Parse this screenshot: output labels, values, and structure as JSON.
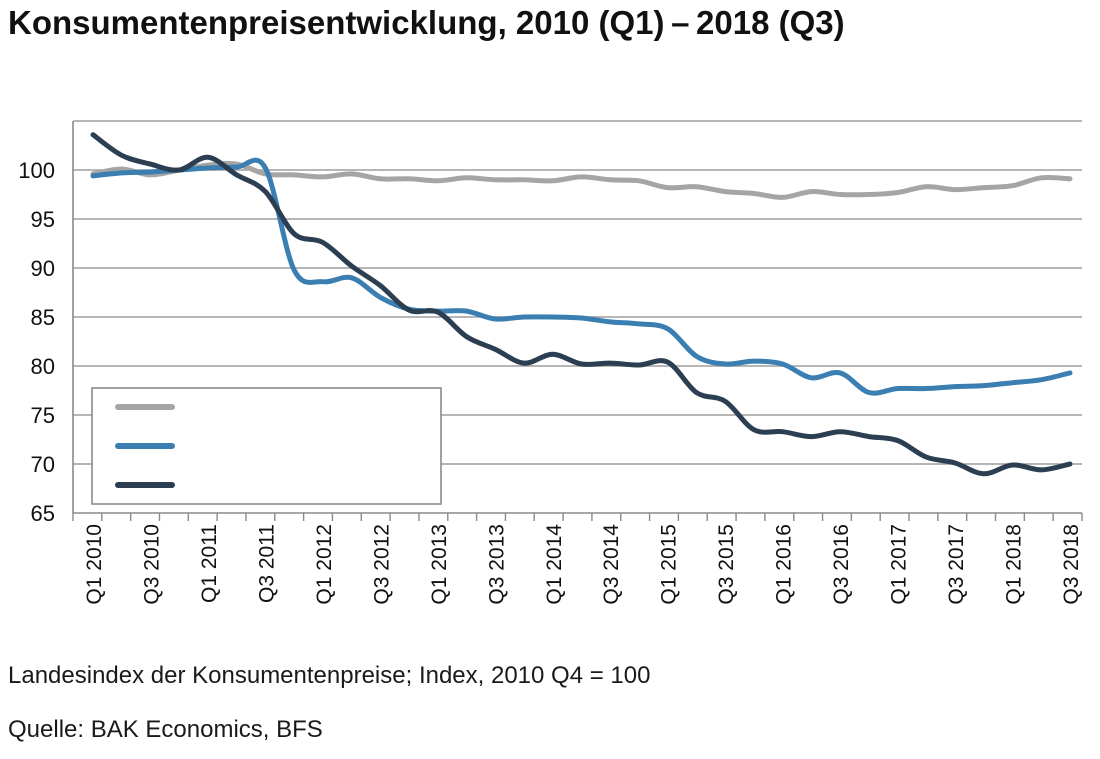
{
  "title": "Konsumentenpreisentwicklung, 2010 (Q1) – 2018 (Q3)",
  "notes": {
    "index_note": "Landesindex der Konsumentenpreise; Index, 2010 Q4 = 100",
    "source": "Quelle: BAK Economics, BFS"
  },
  "chart_data": {
    "type": "line",
    "xlabel": "",
    "ylabel": "",
    "ylim": [
      65,
      105
    ],
    "yticks": [
      65,
      70,
      75,
      80,
      85,
      90,
      95,
      100
    ],
    "grid": true,
    "legend_position": "bottom-left",
    "x_tick_labels": [
      "Q1 2010",
      "Q3 2010",
      "Q1 2011",
      "Q3 2011",
      "Q1 2012",
      "Q3 2012",
      "Q1 2013",
      "Q3 2013",
      "Q1 2014",
      "Q3 2014",
      "Q1 2015",
      "Q3 2015",
      "Q1 2016",
      "Q3 2016",
      "Q1 2017",
      "Q3 2017",
      "Q1 2018",
      "Q3 2018"
    ],
    "categories": [
      "Q1 2010",
      "Q2 2010",
      "Q3 2010",
      "Q4 2010",
      "Q1 2011",
      "Q2 2011",
      "Q3 2011",
      "Q4 2011",
      "Q1 2012",
      "Q2 2012",
      "Q3 2012",
      "Q4 2012",
      "Q1 2013",
      "Q2 2013",
      "Q3 2013",
      "Q4 2013",
      "Q1 2014",
      "Q2 2014",
      "Q3 2014",
      "Q4 2014",
      "Q1 2015",
      "Q2 2015",
      "Q3 2015",
      "Q4 2015",
      "Q1 2016",
      "Q2 2016",
      "Q3 2016",
      "Q4 2016",
      "Q1 2017",
      "Q2 2017",
      "Q3 2017",
      "Q4 2017",
      "Q1 2018",
      "Q2 2018",
      "Q3 2018"
    ],
    "series": [
      {
        "color": "#a5a5a5",
        "values": [
          99.6,
          100.1,
          99.5,
          100.0,
          100.5,
          100.6,
          99.6,
          99.5,
          99.3,
          99.6,
          99.1,
          99.1,
          98.9,
          99.2,
          99.0,
          99.0,
          98.9,
          99.3,
          99.0,
          98.9,
          98.2,
          98.3,
          97.8,
          97.6,
          97.2,
          97.8,
          97.5,
          97.5,
          97.7,
          98.3,
          98.0,
          98.2,
          98.4,
          99.2,
          99.1
        ]
      },
      {
        "color": "#3a7eb2",
        "values": [
          99.4,
          99.7,
          99.8,
          100.0,
          100.2,
          100.3,
          100.2,
          89.8,
          88.6,
          89.0,
          87.0,
          85.8,
          85.6,
          85.6,
          84.8,
          85.0,
          85.0,
          84.9,
          84.5,
          84.3,
          83.8,
          81.0,
          80.2,
          80.5,
          80.2,
          78.8,
          79.3,
          77.3,
          77.7,
          77.7,
          77.9,
          78.0,
          78.3,
          78.6,
          79.3
        ]
      },
      {
        "color": "#2c3e52",
        "values": [
          103.6,
          101.5,
          100.6,
          100.0,
          101.3,
          99.5,
          97.8,
          93.5,
          92.6,
          90.2,
          88.2,
          85.7,
          85.5,
          83.0,
          81.7,
          80.3,
          81.2,
          80.2,
          80.3,
          80.1,
          80.4,
          77.3,
          76.4,
          73.5,
          73.3,
          72.8,
          73.3,
          72.8,
          72.4,
          70.7,
          70.1,
          69.0,
          69.9,
          69.4,
          70.0
        ]
      }
    ]
  }
}
